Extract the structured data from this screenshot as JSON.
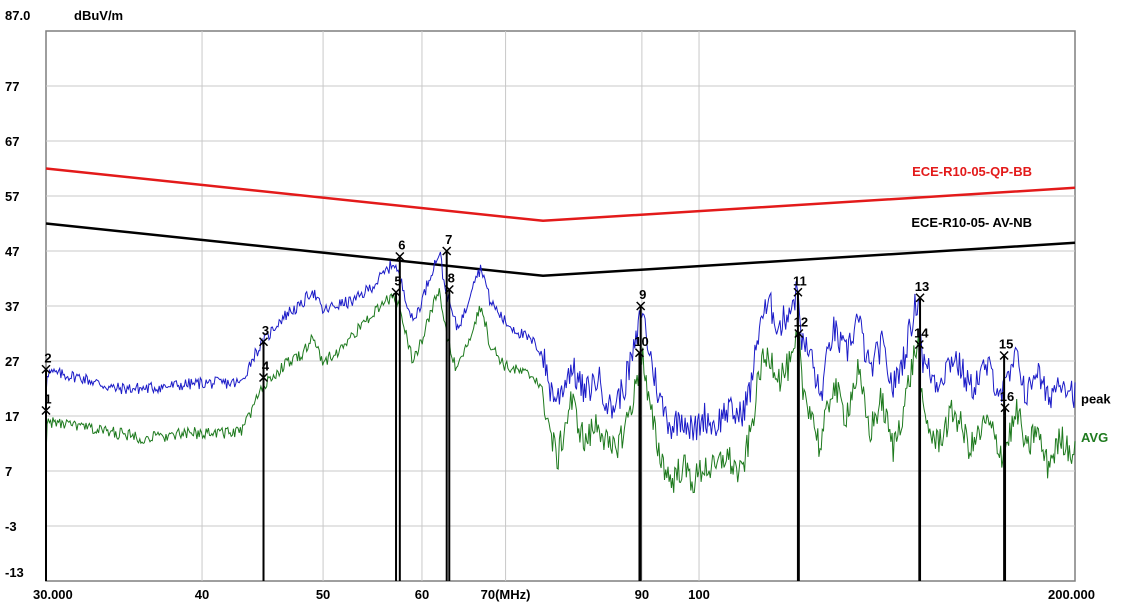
{
  "chart_data": {
    "type": "line",
    "ylabel": "dBuV/m",
    "ylim": [
      -13,
      87
    ],
    "y_top_label": "87.0",
    "yticks": [
      "77",
      "67",
      "57",
      "47",
      "37",
      "27",
      "17",
      "7",
      "-3",
      "-13"
    ],
    "xlim": [
      30,
      200
    ],
    "x_scale": "log",
    "xticks": [
      {
        "v": 30,
        "label": "30.000"
      },
      {
        "v": 40,
        "label": "40"
      },
      {
        "v": 50,
        "label": "50"
      },
      {
        "v": 60,
        "label": "60"
      },
      {
        "v": 70,
        "label": "70(MHz)"
      },
      {
        "v": 90,
        "label": "90"
      },
      {
        "v": 100,
        "label": "100"
      },
      {
        "v": 200,
        "label": "200.000"
      }
    ],
    "grid": true,
    "limits": [
      {
        "name": "ECE-R10-05-QP-BB",
        "color": "#e31a1a",
        "x": [
          30,
          75,
          200
        ],
        "y": [
          62,
          52.5,
          58.5
        ]
      },
      {
        "name": "ECE-R10-05- AV-NB",
        "color": "#000000",
        "x": [
          30,
          75,
          200
        ],
        "y": [
          52,
          42.5,
          48.5
        ]
      }
    ],
    "traces": [
      {
        "name": "peak",
        "color": "#1c1cc8",
        "offset": 0,
        "points": [
          [
            30,
            25
          ],
          [
            32,
            24
          ],
          [
            34,
            22
          ],
          [
            36,
            22
          ],
          [
            40,
            23
          ],
          [
            43,
            23
          ],
          [
            44,
            28
          ],
          [
            45,
            31
          ],
          [
            46,
            34
          ],
          [
            47,
            36
          ],
          [
            48,
            37
          ],
          [
            49,
            40
          ],
          [
            50,
            36
          ],
          [
            51,
            37
          ],
          [
            53,
            38
          ],
          [
            55,
            41
          ],
          [
            57,
            45
          ],
          [
            58,
            40
          ],
          [
            59,
            34
          ],
          [
            60,
            38
          ],
          [
            61,
            43
          ],
          [
            62,
            47
          ],
          [
            62.5,
            41
          ],
          [
            63,
            38
          ],
          [
            64,
            33
          ],
          [
            65,
            36
          ],
          [
            66,
            42
          ],
          [
            67,
            44
          ],
          [
            68,
            38
          ],
          [
            70,
            34
          ],
          [
            72,
            32
          ],
          [
            74,
            30
          ],
          [
            75,
            28
          ],
          [
            76,
            22
          ],
          [
            77,
            20
          ],
          [
            79,
            26
          ],
          [
            81,
            21
          ],
          [
            83,
            24
          ],
          [
            85,
            18
          ],
          [
            87,
            22
          ],
          [
            89,
            30
          ],
          [
            90,
            37
          ],
          [
            91,
            30
          ],
          [
            93,
            20
          ],
          [
            95,
            15
          ],
          [
            97,
            17
          ],
          [
            99,
            14
          ],
          [
            101,
            17
          ],
          [
            103,
            15
          ],
          [
            105,
            18
          ],
          [
            108,
            17
          ],
          [
            110,
            22
          ],
          [
            112,
            35
          ],
          [
            114,
            37
          ],
          [
            116,
            33
          ],
          [
            119,
            38
          ],
          [
            120,
            40
          ],
          [
            121,
            30
          ],
          [
            123,
            28
          ],
          [
            125,
            20
          ],
          [
            128,
            33
          ],
          [
            131,
            28
          ],
          [
            134,
            35
          ],
          [
            137,
            25
          ],
          [
            140,
            30
          ],
          [
            143,
            22
          ],
          [
            146,
            28
          ],
          [
            149,
            37
          ],
          [
            150,
            39
          ],
          [
            151,
            27
          ],
          [
            155,
            23
          ],
          [
            160,
            28
          ],
          [
            165,
            22
          ],
          [
            170,
            26
          ],
          [
            175,
            21
          ],
          [
            180,
            28
          ],
          [
            183,
            20
          ],
          [
            186,
            26
          ],
          [
            190,
            20
          ],
          [
            195,
            24
          ],
          [
            200,
            21
          ]
        ]
      },
      {
        "name": "AVG",
        "color": "#1e7a1e",
        "offset": -8,
        "points": [
          [
            30,
            16
          ],
          [
            32,
            15
          ],
          [
            34,
            14
          ],
          [
            36,
            13
          ],
          [
            40,
            14
          ],
          [
            43,
            14
          ],
          [
            44,
            19
          ],
          [
            45,
            23
          ],
          [
            46,
            25
          ],
          [
            47,
            27
          ],
          [
            48,
            28
          ],
          [
            49,
            31
          ],
          [
            50,
            27
          ],
          [
            51,
            28
          ],
          [
            53,
            32
          ],
          [
            55,
            36
          ],
          [
            57,
            39
          ],
          [
            58,
            34
          ],
          [
            59,
            27
          ],
          [
            60,
            31
          ],
          [
            61,
            36
          ],
          [
            62,
            40
          ],
          [
            62.5,
            34
          ],
          [
            63,
            30
          ],
          [
            64,
            25
          ],
          [
            65,
            29
          ],
          [
            66,
            34
          ],
          [
            67,
            37
          ],
          [
            68,
            30
          ],
          [
            70,
            26
          ],
          [
            72,
            25
          ],
          [
            74,
            24
          ],
          [
            75,
            21
          ],
          [
            76,
            14
          ],
          [
            77,
            9
          ],
          [
            79,
            20
          ],
          [
            81,
            12
          ],
          [
            83,
            16
          ],
          [
            85,
            10
          ],
          [
            87,
            14
          ],
          [
            89,
            22
          ],
          [
            90,
            29
          ],
          [
            91,
            20
          ],
          [
            93,
            10
          ],
          [
            95,
            5
          ],
          [
            97,
            8
          ],
          [
            99,
            5
          ],
          [
            101,
            8
          ],
          [
            103,
            7
          ],
          [
            105,
            10
          ],
          [
            108,
            6
          ],
          [
            110,
            14
          ],
          [
            112,
            26
          ],
          [
            114,
            28
          ],
          [
            116,
            24
          ],
          [
            119,
            27
          ],
          [
            120,
            32
          ],
          [
            121,
            22
          ],
          [
            123,
            18
          ],
          [
            125,
            11
          ],
          [
            128,
            23
          ],
          [
            131,
            17
          ],
          [
            134,
            25
          ],
          [
            137,
            14
          ],
          [
            140,
            20
          ],
          [
            143,
            11
          ],
          [
            146,
            19
          ],
          [
            149,
            29
          ],
          [
            150,
            30
          ],
          [
            151,
            17
          ],
          [
            155,
            12
          ],
          [
            160,
            18
          ],
          [
            165,
            11
          ],
          [
            170,
            16
          ],
          [
            175,
            10
          ],
          [
            180,
            18
          ],
          [
            183,
            10
          ],
          [
            186,
            15
          ],
          [
            190,
            8
          ],
          [
            195,
            13
          ],
          [
            200,
            10
          ]
        ]
      }
    ],
    "trace_labels": [
      {
        "text": "peak",
        "color": "#000000",
        "y": 20
      },
      {
        "text": "AVG",
        "color": "#1e7a1e",
        "y": 13
      }
    ],
    "markers": [
      {
        "label": "1",
        "x": 30.0,
        "y": 18
      },
      {
        "label": "2",
        "x": 30.0,
        "y": 25.5
      },
      {
        "label": "3",
        "x": 44.8,
        "y": 30.5
      },
      {
        "label": "4",
        "x": 44.8,
        "y": 24
      },
      {
        "label": "5",
        "x": 57.2,
        "y": 39.5
      },
      {
        "label": "6",
        "x": 57.6,
        "y": 46
      },
      {
        "label": "7",
        "x": 62.8,
        "y": 47
      },
      {
        "label": "8",
        "x": 63.1,
        "y": 40
      },
      {
        "label": "9",
        "x": 89.8,
        "y": 37
      },
      {
        "label": "10",
        "x": 89.6,
        "y": 28.5
      },
      {
        "label": "11",
        "x": 120.0,
        "y": 39.5
      },
      {
        "label": "12",
        "x": 120.2,
        "y": 32
      },
      {
        "label": "13",
        "x": 150.3,
        "y": 38.5
      },
      {
        "label": "14",
        "x": 150.1,
        "y": 30
      },
      {
        "label": "15",
        "x": 175.5,
        "y": 28
      },
      {
        "label": "16",
        "x": 175.8,
        "y": 18.5
      }
    ]
  }
}
